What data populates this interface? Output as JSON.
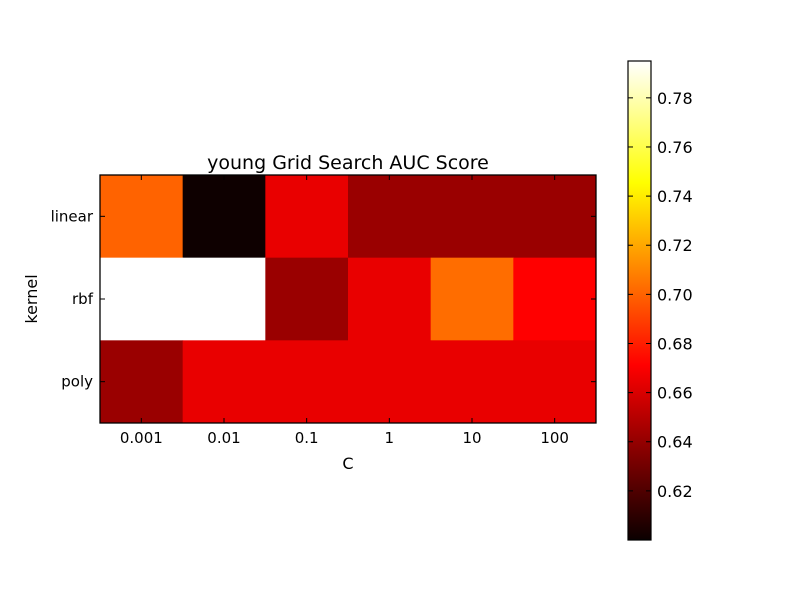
{
  "chart_data": {
    "type": "heatmap",
    "title": "young Grid Search AUC Score",
    "xlabel": "C",
    "ylabel": "kernel",
    "x_categories": [
      "0.001",
      "0.01",
      "0.1",
      "1",
      "10",
      "100"
    ],
    "y_categories": [
      "linear",
      "rbf",
      "poly"
    ],
    "values": [
      [
        0.7,
        0.601,
        0.662,
        0.64,
        0.64,
        0.64
      ],
      [
        0.795,
        0.795,
        0.64,
        0.662,
        0.703,
        0.67
      ],
      [
        0.64,
        0.662,
        0.662,
        0.662,
        0.662,
        0.662
      ]
    ],
    "colormap": "hot",
    "color_range": [
      0.6,
      0.795
    ],
    "colorbar_ticks": [
      "0.62",
      "0.64",
      "0.66",
      "0.68",
      "0.70",
      "0.72",
      "0.74",
      "0.76",
      "0.78"
    ],
    "grid": false
  }
}
